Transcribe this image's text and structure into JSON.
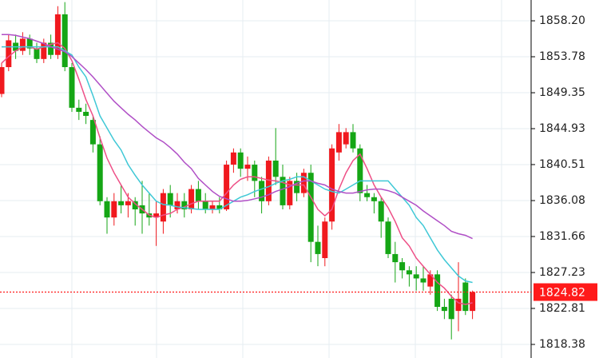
{
  "chart_data": {
    "type": "candlestick",
    "categories": [
      null,
      null,
      null,
      null,
      null,
      null,
      null,
      null,
      null,
      null,
      null,
      null,
      null,
      null,
      null,
      null,
      null,
      null,
      null,
      null,
      null,
      null,
      null,
      null,
      null,
      null,
      null,
      null,
      null,
      null,
      null,
      null,
      null,
      null,
      null,
      null,
      null,
      null,
      null,
      null,
      null,
      null,
      null,
      null,
      null,
      null,
      null,
      null,
      null,
      null,
      null,
      null,
      null,
      null,
      null,
      null,
      null,
      null,
      null,
      null,
      null,
      null,
      null,
      null,
      null,
      null,
      null,
      null
    ],
    "open": [
      1849.2,
      1852.5,
      1855.5,
      1854.5,
      1856,
      1854.8,
      1853.5,
      1855.5,
      1854,
      1859,
      1852.5,
      1847.5,
      1847,
      1846,
      1843,
      1836,
      1834,
      1836,
      1835.5,
      1836,
      1835.5,
      1834.5,
      1834,
      1833.5,
      1837,
      1835,
      1836,
      1835,
      1837.5,
      1836,
      1835,
      1835.5,
      1835,
      1840.5,
      1842,
      1840,
      1840.5,
      1838.5,
      1836,
      1841,
      1839,
      1835.5,
      1838.5,
      1837,
      1839.5,
      1831,
      1829,
      1833.5,
      1842,
      1843,
      1844.5,
      1842.5,
      1837,
      1836.5,
      1836,
      1833.5,
      1829.5,
      1828.5,
      1827.5,
      1827,
      1826.5,
      1825.5,
      1827,
      1823,
      1824,
      1822.5,
      1826,
      1822.5
    ],
    "high": [
      1853,
      1856.5,
      1856.5,
      1856.8,
      1856.5,
      1855.5,
      1856,
      1856.5,
      1860,
      1860.5,
      1853,
      1848.5,
      1848,
      1846.5,
      1844,
      1836.5,
      1837,
      1838,
      1837,
      1836.5,
      1838.5,
      1837,
      1836,
      1837.5,
      1838,
      1837,
      1837,
      1838,
      1838.5,
      1837,
      1836,
      1836.5,
      1841,
      1842.5,
      1842.5,
      1841.5,
      1841,
      1839,
      1841.5,
      1845,
      1840.5,
      1839,
      1839.5,
      1840,
      1840.5,
      1833,
      1834,
      1843,
      1845.5,
      1845,
      1845.5,
      1843,
      1838,
      1837,
      1836.5,
      1834,
      1831,
      1829,
      1828,
      1828,
      1828,
      1827.5,
      1827.5,
      1824,
      1824.5,
      1828.5,
      1826.5,
      1825
    ],
    "low": [
      1848.8,
      1852,
      1853.5,
      1854,
      1854,
      1853,
      1853,
      1853.5,
      1853.5,
      1852,
      1847,
      1846,
      1845.5,
      1842,
      1835.5,
      1832,
      1833,
      1834.5,
      1834,
      1833,
      1832,
      1833,
      1830.5,
      1832,
      1834,
      1834.5,
      1834,
      1834.5,
      1835,
      1834.5,
      1834.5,
      1834.5,
      1834.8,
      1839.5,
      1839,
      1838.5,
      1836.5,
      1834.5,
      1835.5,
      1838,
      1835,
      1835,
      1836,
      1836.5,
      1828.5,
      1828,
      1828,
      1832.5,
      1841,
      1842.5,
      1842,
      1836,
      1836,
      1834.5,
      1831.5,
      1829,
      1826,
      1826.5,
      1825.5,
      1825,
      1825,
      1824.5,
      1822.5,
      1821.5,
      1819,
      1820,
      1822,
      1821.5
    ],
    "close": [
      1852.5,
      1855.8,
      1854.5,
      1856,
      1854.8,
      1853.5,
      1855.5,
      1854,
      1859,
      1852.5,
      1847.5,
      1847,
      1846.5,
      1843,
      1836,
      1834,
      1836,
      1835.5,
      1836,
      1835,
      1834.5,
      1834,
      1834.5,
      1837,
      1835.5,
      1836,
      1835,
      1837.5,
      1836,
      1835,
      1835.5,
      1835,
      1840.5,
      1842,
      1840,
      1840.5,
      1838.5,
      1836,
      1841,
      1839,
      1835.5,
      1838.5,
      1837,
      1839.5,
      1831,
      1829.5,
      1833.5,
      1842.5,
      1844.5,
      1844.5,
      1842.5,
      1837,
      1836.5,
      1836,
      1833.5,
      1829.5,
      1828.5,
      1827.5,
      1827,
      1826.5,
      1826,
      1827,
      1823,
      1822.5,
      1821.5,
      1824,
      1822.5,
      1824.82
    ],
    "up_color": "#f0191e",
    "down_color": "#15a615",
    "series": [
      {
        "color": "#ee4f86",
        "values": [
          1853,
          1853.8,
          1854.5,
          1855,
          1855,
          1854.7,
          1855,
          1855.3,
          1855.5,
          1854.8,
          1853.3,
          1851,
          1848.5,
          1846.5,
          1843.8,
          1841.3,
          1839.5,
          1838,
          1836.5,
          1835.7,
          1835,
          1834.3,
          1834,
          1834.3,
          1834.5,
          1835,
          1835.3,
          1835.7,
          1836,
          1836,
          1836,
          1836,
          1837,
          1838,
          1838.7,
          1839,
          1839,
          1838.8,
          1838.6,
          1838.5,
          1838.3,
          1838,
          1838,
          1838,
          1836.5,
          1835,
          1834.2,
          1835,
          1837.5,
          1839.5,
          1841,
          1841.8,
          1840,
          1838,
          1836.5,
          1835.2,
          1833.5,
          1831.5,
          1830.5,
          1829,
          1828,
          1827,
          1826,
          1825.3,
          1824.3,
          1823.5,
          1823.3,
          1823.5
        ]
      },
      {
        "color": "#3fc8d6",
        "values": [
          1855,
          1855,
          1855,
          1855,
          1855,
          1855,
          1855,
          1855,
          1855,
          1854.5,
          1854,
          1852.5,
          1851.3,
          1849,
          1846.5,
          1845,
          1843.5,
          1842.3,
          1840.5,
          1839.2,
          1838,
          1837,
          1836,
          1835.6,
          1835.5,
          1835.3,
          1835.2,
          1835.1,
          1835,
          1835,
          1835,
          1835,
          1835.5,
          1836,
          1836.5,
          1836.8,
          1837.2,
          1837.5,
          1837.8,
          1838.2,
          1838.5,
          1838.7,
          1839,
          1839,
          1838.5,
          1838,
          1837.5,
          1837.2,
          1837,
          1837.5,
          1838,
          1838.5,
          1838.5,
          1838.5,
          1838.5,
          1838.5,
          1837.5,
          1836.5,
          1835.5,
          1834,
          1833,
          1831.5,
          1830,
          1828.8,
          1827.8,
          1826.8,
          1826.2,
          1826
        ]
      },
      {
        "color": "#b04fc6",
        "values": [
          1856.5,
          1856.5,
          1856.4,
          1856.2,
          1856,
          1855.7,
          1855.4,
          1855,
          1854.7,
          1854.4,
          1853.8,
          1853,
          1852.2,
          1851.3,
          1850.3,
          1849.3,
          1848.3,
          1847.5,
          1846.7,
          1846,
          1845.2,
          1844.5,
          1843.8,
          1843.3,
          1842.6,
          1841.8,
          1840.8,
          1840,
          1838.8,
          1838,
          1837.2,
          1836.6,
          1836.3,
          1836,
          1836,
          1836.1,
          1836.3,
          1836.5,
          1836.8,
          1837.2,
          1837.5,
          1837.8,
          1838.2,
          1838.5,
          1838.5,
          1838.2,
          1838,
          1837.5,
          1837.2,
          1837,
          1837,
          1837.2,
          1837.4,
          1837.5,
          1837.5,
          1837.3,
          1837,
          1836.5,
          1836,
          1835.5,
          1834.8,
          1834.2,
          1833.6,
          1833,
          1832.3,
          1832,
          1831.8,
          1831.4
        ]
      }
    ],
    "ylim": [
      1816.71,
      1860.76
    ],
    "yticks": [
      {
        "value": 1858.2,
        "label": "1858.20"
      },
      1853.78,
      1849.35,
      1844.93,
      1840.51,
      1836.08,
      1831.66,
      1827.23,
      1822.81,
      1818.38
    ],
    "grid": true,
    "last_price": 1824.82,
    "last_price_color": "#ff1a1a"
  }
}
